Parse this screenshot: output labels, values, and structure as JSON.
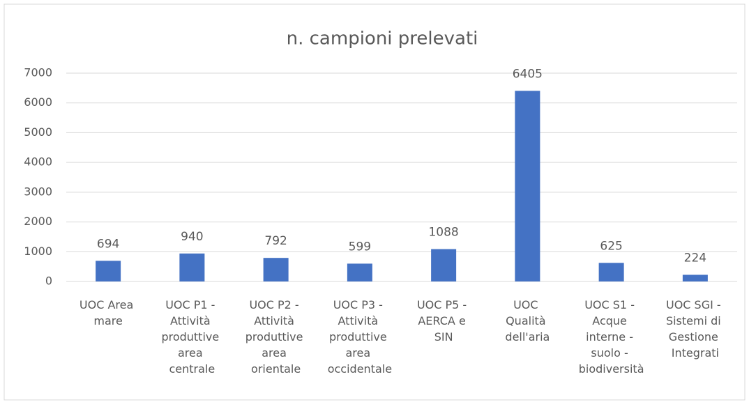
{
  "chart_data": {
    "type": "bar",
    "title": "n. campioni prelevati",
    "categories": [
      "UOC Area mare",
      "UOC P1 - Attività produttive area centrale",
      "UOC P2 - Attività produttive area orientale",
      "UOC P3 - Attività produttive area occidentale",
      "UOC P5 - AERCA e SIN",
      "UOC Qualità dell'aria",
      "UOC S1 - Acque interne - suolo - biodiversità",
      "UOC SGI - Sistemi di Gestione Integrati"
    ],
    "values": [
      694,
      940,
      792,
      599,
      1088,
      6405,
      625,
      224
    ],
    "color": "#4472c4",
    "ylim": [
      0,
      7000
    ],
    "yticks": [
      0,
      1000,
      2000,
      3000,
      4000,
      5000,
      6000,
      7000
    ],
    "grid": true
  }
}
